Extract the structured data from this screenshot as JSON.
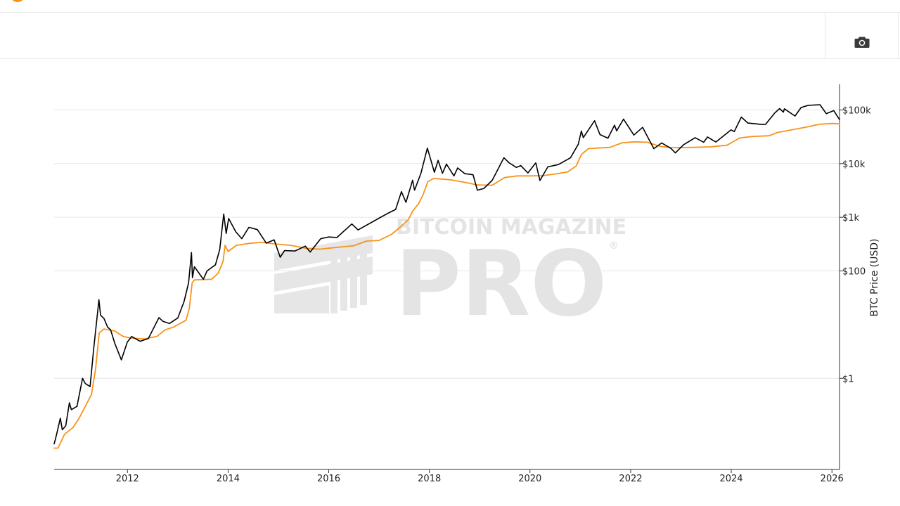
{
  "toolbar": {
    "camera_icon": "camera-icon"
  },
  "watermark": {
    "line1": "BITCOIN MAGAZINE",
    "line2": "PRO",
    "mark": "®"
  },
  "colors": {
    "price": "#000000",
    "average": "#f7931a",
    "grid": "#e6e6e6",
    "axis": "#333333"
  },
  "chart_data": {
    "type": "line",
    "title": "",
    "xlabel": "",
    "ylabel": "BTC Price (USD)",
    "y_scale": "log",
    "ylim": [
      0.02,
      300000
    ],
    "xlim": [
      "2010-07-18",
      "2026-02-25"
    ],
    "grid": true,
    "legend": "none",
    "x_ticks": [
      "2012",
      "2014",
      "2016",
      "2018",
      "2020",
      "2022",
      "2024",
      "2026"
    ],
    "y_ticks": [
      {
        "value": 1,
        "label": "$1"
      },
      {
        "value": 100,
        "label": "$100"
      },
      {
        "value": 1000,
        "label": "$1k"
      },
      {
        "value": 10000,
        "label": "$10k"
      },
      {
        "value": 100000,
        "label": "$100k"
      }
    ],
    "series": [
      {
        "color": "#000000",
        "points": [
          [
            "2010-07-18",
            0.06
          ],
          [
            "2010-07-25",
            0.07
          ],
          [
            "2010-08-05",
            0.09
          ],
          [
            "2010-09-01",
            0.18
          ],
          [
            "2010-09-15",
            0.11
          ],
          [
            "2010-10-10",
            0.13
          ],
          [
            "2010-11-06",
            0.35
          ],
          [
            "2010-11-20",
            0.26
          ],
          [
            "2010-12-31",
            0.3
          ],
          [
            "2011-02-09",
            1.0
          ],
          [
            "2011-03-01",
            0.8
          ],
          [
            "2011-04-05",
            0.7
          ],
          [
            "2011-05-01",
            3.5
          ],
          [
            "2011-06-08",
            29
          ],
          [
            "2011-06-20",
            15
          ],
          [
            "2011-07-15",
            13
          ],
          [
            "2011-08-10",
            9
          ],
          [
            "2011-09-01",
            8
          ],
          [
            "2011-10-01",
            4.5
          ],
          [
            "2011-11-18",
            2.2
          ],
          [
            "2011-12-31",
            4.7
          ],
          [
            "2012-02-01",
            6.0
          ],
          [
            "2012-04-01",
            4.9
          ],
          [
            "2012-06-01",
            5.5
          ],
          [
            "2012-08-17",
            13.5
          ],
          [
            "2012-09-15",
            11.5
          ],
          [
            "2012-11-01",
            10.5
          ],
          [
            "2013-01-01",
            13.3
          ],
          [
            "2013-02-15",
            27
          ],
          [
            "2013-03-20",
            60
          ],
          [
            "2013-04-10",
            220
          ],
          [
            "2013-04-17",
            75
          ],
          [
            "2013-05-01",
            120
          ],
          [
            "2013-07-05",
            70
          ],
          [
            "2013-08-01",
            100
          ],
          [
            "2013-10-01",
            130
          ],
          [
            "2013-11-01",
            250
          ],
          [
            "2013-11-30",
            1150
          ],
          [
            "2013-12-18",
            500
          ],
          [
            "2014-01-05",
            950
          ],
          [
            "2014-02-25",
            540
          ],
          [
            "2014-04-10",
            400
          ],
          [
            "2014-06-01",
            650
          ],
          [
            "2014-08-01",
            590
          ],
          [
            "2014-10-05",
            330
          ],
          [
            "2014-12-01",
            380
          ],
          [
            "2015-01-14",
            180
          ],
          [
            "2015-02-15",
            240
          ],
          [
            "2015-05-01",
            235
          ],
          [
            "2015-07-15",
            290
          ],
          [
            "2015-08-20",
            225
          ],
          [
            "2015-11-04",
            400
          ],
          [
            "2016-01-01",
            430
          ],
          [
            "2016-03-01",
            420
          ],
          [
            "2016-06-17",
            750
          ],
          [
            "2016-08-01",
            580
          ],
          [
            "2016-12-31",
            960
          ],
          [
            "2017-03-10",
            1200
          ],
          [
            "2017-05-01",
            1400
          ],
          [
            "2017-06-12",
            3000
          ],
          [
            "2017-07-15",
            1900
          ],
          [
            "2017-09-01",
            4900
          ],
          [
            "2017-09-15",
            3200
          ],
          [
            "2017-11-01",
            6700
          ],
          [
            "2017-12-17",
            19500
          ],
          [
            "2018-02-06",
            6900
          ],
          [
            "2018-03-05",
            11500
          ],
          [
            "2018-04-06",
            6600
          ],
          [
            "2018-05-05",
            9800
          ],
          [
            "2018-06-28",
            5900
          ],
          [
            "2018-07-25",
            8300
          ],
          [
            "2018-09-15",
            6500
          ],
          [
            "2018-11-14",
            6200
          ],
          [
            "2018-12-15",
            3200
          ],
          [
            "2019-02-01",
            3450
          ],
          [
            "2019-04-02",
            4900
          ],
          [
            "2019-06-26",
            12900
          ],
          [
            "2019-08-01",
            10400
          ],
          [
            "2019-09-24",
            8500
          ],
          [
            "2019-10-26",
            9200
          ],
          [
            "2019-12-17",
            6700
          ],
          [
            "2020-02-12",
            10300
          ],
          [
            "2020-03-13",
            4850
          ],
          [
            "2020-05-10",
            8700
          ],
          [
            "2020-07-25",
            9600
          ],
          [
            "2020-10-21",
            12800
          ],
          [
            "2020-12-17",
            23000
          ],
          [
            "2021-01-08",
            40500
          ],
          [
            "2021-01-22",
            30500
          ],
          [
            "2021-04-14",
            63000
          ],
          [
            "2021-05-23",
            34700
          ],
          [
            "2021-07-20",
            29800
          ],
          [
            "2021-09-06",
            52000
          ],
          [
            "2021-09-21",
            40700
          ],
          [
            "2021-11-10",
            67500
          ],
          [
            "2022-01-24",
            34000
          ],
          [
            "2022-03-29",
            47400
          ],
          [
            "2022-05-12",
            28800
          ],
          [
            "2022-06-18",
            19000
          ],
          [
            "2022-08-14",
            24300
          ],
          [
            "2022-10-20",
            19200
          ],
          [
            "2022-11-21",
            15800
          ],
          [
            "2023-01-20",
            22500
          ],
          [
            "2023-04-14",
            30400
          ],
          [
            "2023-06-15",
            25000
          ],
          [
            "2023-07-13",
            31400
          ],
          [
            "2023-09-11",
            25200
          ],
          [
            "2023-12-31",
            42500
          ],
          [
            "2024-01-23",
            39500
          ],
          [
            "2024-03-14",
            73500
          ],
          [
            "2024-05-01",
            57000
          ],
          [
            "2024-08-05",
            54000
          ],
          [
            "2024-09-06",
            54000
          ],
          [
            "2024-11-12",
            88000
          ],
          [
            "2024-12-17",
            106000
          ],
          [
            "2025-01-13",
            91000
          ],
          [
            "2025-01-21",
            105000
          ],
          [
            "2025-04-08",
            77000
          ],
          [
            "2025-05-22",
            111000
          ],
          [
            "2025-07-14",
            122000
          ],
          [
            "2025-08-14",
            123000
          ],
          [
            "2025-10-06",
            125000
          ],
          [
            "2025-11-21",
            85000
          ],
          [
            "2026-01-14",
            97000
          ],
          [
            "2026-02-25",
            66000
          ]
        ]
      },
      {
        "color": "#f7931a",
        "points": [
          [
            "2010-07-18",
            0.05
          ],
          [
            "2010-08-15",
            0.05
          ],
          [
            "2010-10-01",
            0.09
          ],
          [
            "2010-12-01",
            0.12
          ],
          [
            "2011-01-15",
            0.18
          ],
          [
            "2011-03-01",
            0.3
          ],
          [
            "2011-04-15",
            0.5
          ],
          [
            "2011-05-15",
            1.5
          ],
          [
            "2011-06-10",
            7.0
          ],
          [
            "2011-07-15",
            8.3
          ],
          [
            "2011-10-01",
            7.6
          ],
          [
            "2011-12-01",
            6.0
          ],
          [
            "2012-02-01",
            5.6
          ],
          [
            "2012-05-01",
            5.4
          ],
          [
            "2012-08-01",
            6.0
          ],
          [
            "2012-10-01",
            8.0
          ],
          [
            "2012-12-01",
            9.0
          ],
          [
            "2013-03-01",
            12
          ],
          [
            "2013-03-25",
            20
          ],
          [
            "2013-04-15",
            60
          ],
          [
            "2013-05-01",
            68
          ],
          [
            "2013-09-01",
            70
          ],
          [
            "2013-10-20",
            90
          ],
          [
            "2013-11-25",
            150
          ],
          [
            "2013-12-10",
            300
          ],
          [
            "2014-01-01",
            230
          ],
          [
            "2014-03-01",
            300
          ],
          [
            "2014-06-01",
            325
          ],
          [
            "2014-09-01",
            340
          ],
          [
            "2014-12-01",
            320
          ],
          [
            "2015-04-01",
            300
          ],
          [
            "2015-08-01",
            260
          ],
          [
            "2015-11-01",
            255
          ],
          [
            "2016-01-01",
            265
          ],
          [
            "2016-04-01",
            280
          ],
          [
            "2016-07-01",
            295
          ],
          [
            "2016-10-01",
            360
          ],
          [
            "2017-01-01",
            370
          ],
          [
            "2017-04-01",
            480
          ],
          [
            "2017-06-01",
            650
          ],
          [
            "2017-08-01",
            900
          ],
          [
            "2017-09-01",
            1300
          ],
          [
            "2017-10-15",
            1800
          ],
          [
            "2017-11-15",
            2600
          ],
          [
            "2017-12-20",
            4600
          ],
          [
            "2018-02-01",
            5300
          ],
          [
            "2018-06-01",
            5000
          ],
          [
            "2018-10-01",
            4400
          ],
          [
            "2018-12-15",
            4000
          ],
          [
            "2019-04-01",
            3950
          ],
          [
            "2019-07-01",
            5500
          ],
          [
            "2019-10-01",
            5900
          ],
          [
            "2020-01-01",
            5900
          ],
          [
            "2020-04-01",
            5950
          ],
          [
            "2020-07-01",
            6400
          ],
          [
            "2020-10-01",
            7000
          ],
          [
            "2020-12-01",
            9000
          ],
          [
            "2021-01-10",
            15000
          ],
          [
            "2021-03-01",
            19000
          ],
          [
            "2021-05-01",
            19500
          ],
          [
            "2021-08-01",
            20000
          ],
          [
            "2021-11-01",
            24500
          ],
          [
            "2022-02-01",
            25500
          ],
          [
            "2022-05-01",
            25000
          ],
          [
            "2022-08-01",
            21000
          ],
          [
            "2022-11-01",
            19800
          ],
          [
            "2023-03-01",
            20000
          ],
          [
            "2023-08-01",
            20500
          ],
          [
            "2023-12-01",
            22000
          ],
          [
            "2024-03-01",
            30000
          ],
          [
            "2024-06-01",
            32000
          ],
          [
            "2024-10-01",
            33000
          ],
          [
            "2024-12-01",
            38000
          ],
          [
            "2025-03-01",
            42000
          ],
          [
            "2025-07-01",
            48000
          ],
          [
            "2025-10-01",
            54000
          ],
          [
            "2026-01-01",
            56000
          ],
          [
            "2026-02-25",
            55000
          ]
        ]
      }
    ]
  }
}
